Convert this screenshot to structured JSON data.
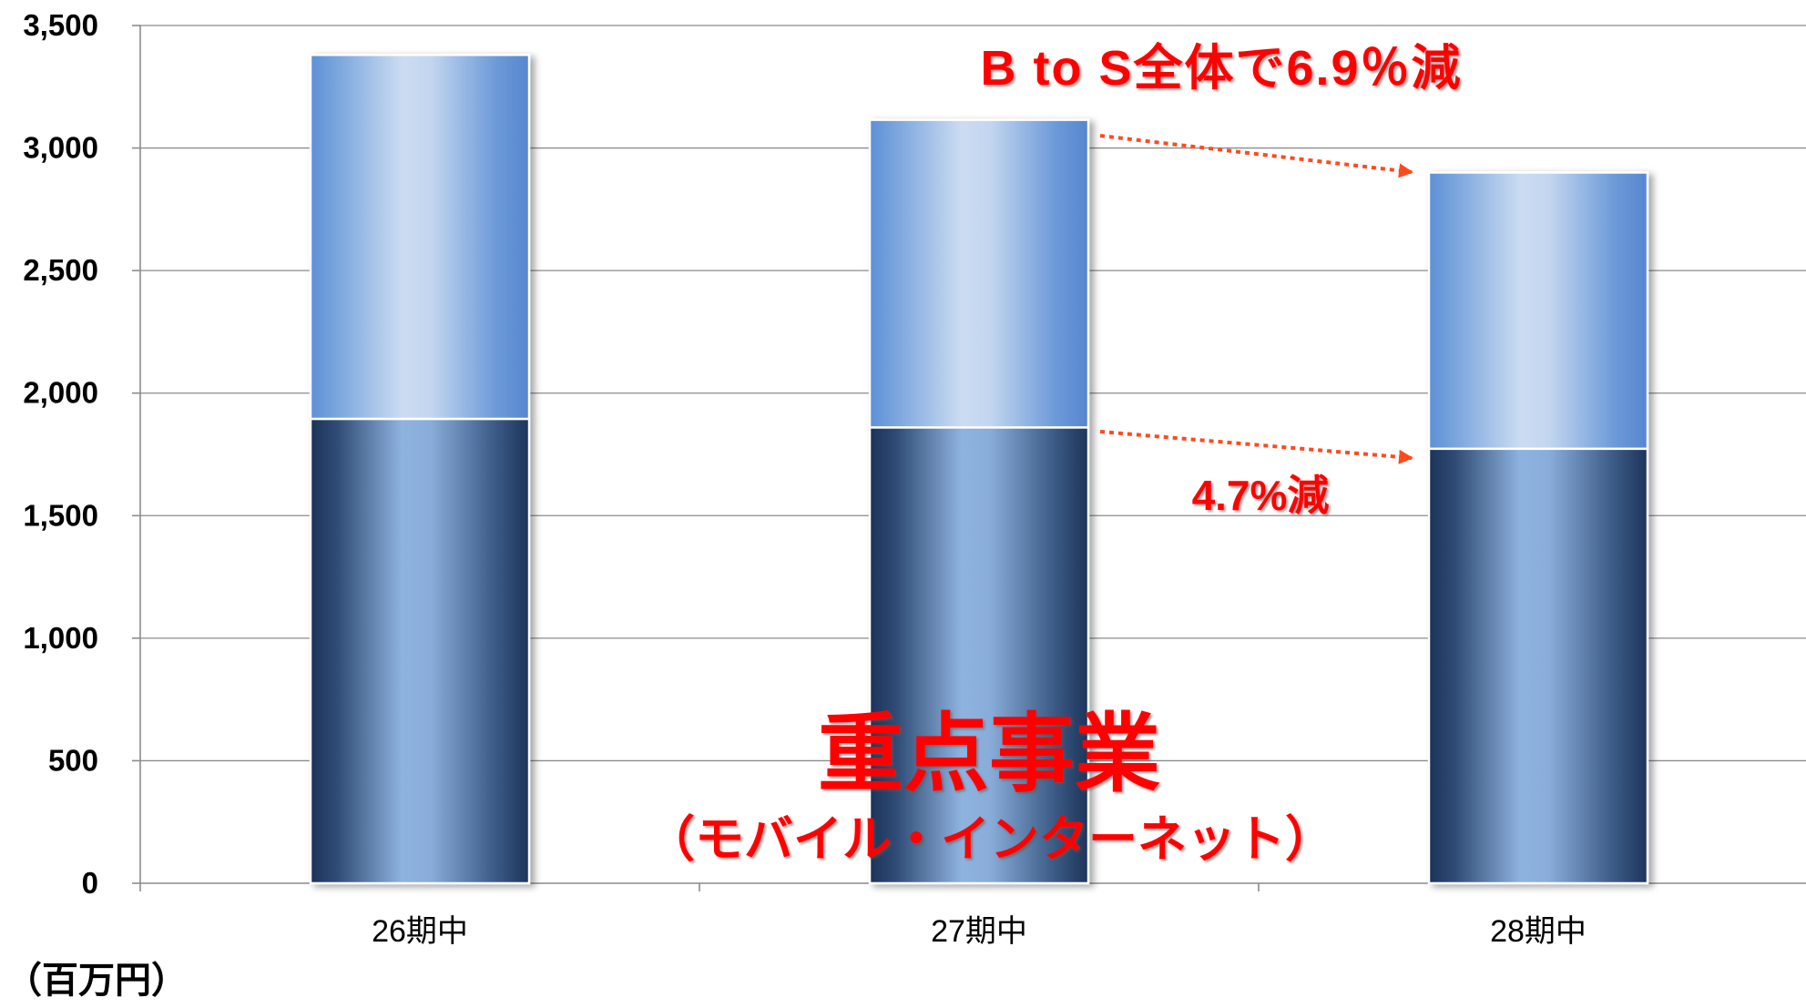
{
  "chart_data": {
    "type": "bar",
    "stacked": true,
    "categories": [
      "26期中",
      "27期中",
      "28期中"
    ],
    "series": [
      {
        "values": [
          1895,
          1860,
          1773
        ]
      },
      {
        "values": [
          1485,
          1255,
          1127
        ]
      }
    ],
    "ylim": [
      0,
      3500
    ],
    "yticks": [
      0,
      500,
      1000,
      1500,
      2000,
      2500,
      3000,
      3500
    ],
    "ytick_labels": [
      "0",
      "500",
      "1,000",
      "1,500",
      "2,000",
      "2,500",
      "3,000",
      "3,500"
    ],
    "unit_label": "（百万円）",
    "grid": true,
    "legend": "none",
    "annotations": {
      "total_change": "B to S全体で6.9％減",
      "lower_change": "4.7%減",
      "focus_title": "重点事業",
      "focus_subtitle": "（モバイル・インターネット）"
    }
  },
  "colors": {
    "lower_gradient": [
      "#1c3358",
      "#2f4b75",
      "#8fb3df",
      "#89acd9",
      "#3a5984",
      "#1d3459"
    ],
    "upper_gradient": [
      "#5c90d6",
      "#7aa5dd",
      "#cbdcf2",
      "#c3d6ef",
      "#6c9ad8",
      "#5686cf"
    ],
    "annotation": "#ff0000",
    "arrow": "#ff4a1c",
    "grid": "#8c8c8c",
    "text": "#000000"
  }
}
